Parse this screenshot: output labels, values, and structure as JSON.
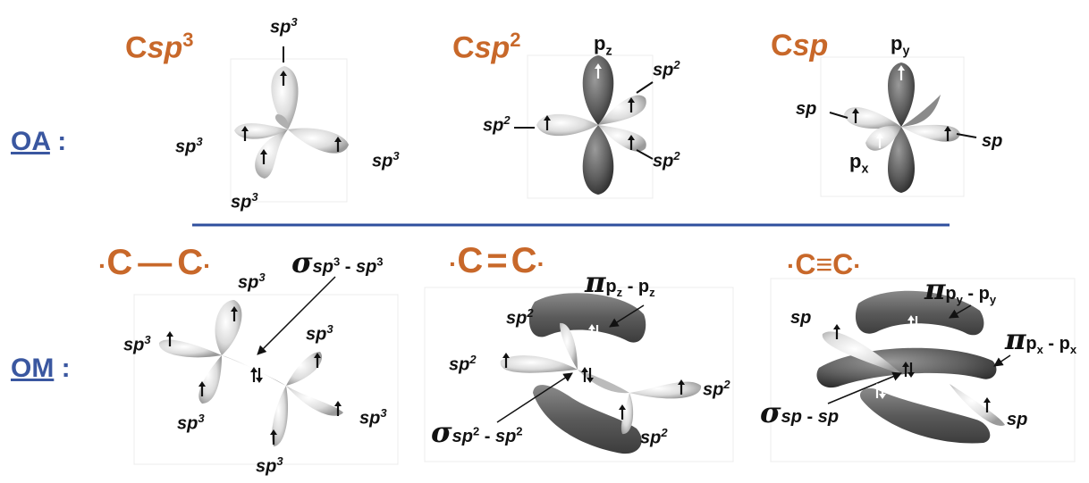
{
  "row_labels": {
    "oa": "OA",
    "om": "OM",
    "colon": ":"
  },
  "hybridizations": {
    "sp3": {
      "c": "C",
      "sub": "sp",
      "sup": "3"
    },
    "sp2": {
      "c": "C",
      "sub": "sp",
      "sup": "2"
    },
    "sp": {
      "c": "C",
      "sub": "sp"
    }
  },
  "labels": {
    "sp": "sp",
    "sup2": "2",
    "sup3": "3",
    "p": "p",
    "z": "z",
    "y": "y",
    "x": "x"
  },
  "molecules": {
    "single": {
      "c1": "C",
      "c2": "C",
      "bond": "—"
    },
    "double": {
      "c1": "C",
      "c2": "C",
      "bond": "="
    },
    "triple": {
      "c1": "C",
      "c2": "C",
      "bond": "≡"
    }
  },
  "bonds": {
    "sigma_sp3": {
      "symbol": "σ",
      "a": "sp",
      "a_sup": "3",
      "dash": " - ",
      "b": "sp",
      "b_sup": "3"
    },
    "pi_pz": {
      "symbol": "π",
      "a": "p",
      "a_sub": "z",
      "dash": " - ",
      "b": "p",
      "b_sub": "z"
    },
    "sigma_sp2": {
      "symbol": "σ",
      "a": "sp",
      "a_sup": "2",
      "dash": " - ",
      "b": "sp",
      "b_sup": "2"
    },
    "pi_py": {
      "symbol": "π",
      "a": "p",
      "a_sub": "y",
      "dash": " - ",
      "b": "p",
      "b_sub": "y"
    },
    "pi_px": {
      "symbol": "π",
      "a": "p",
      "a_sub": "x",
      "dash": " - ",
      "b": "p",
      "b_sub": "x"
    },
    "sigma_sp": {
      "symbol": "σ",
      "a": "sp",
      "dash": " - ",
      "b": "sp"
    }
  },
  "colors": {
    "hybrid": "#c8682a",
    "row_label": "#3a57a0",
    "divider": "#2f4f9e",
    "lobe_light": "#c8c8c8",
    "lobe_dark": "#555555"
  }
}
